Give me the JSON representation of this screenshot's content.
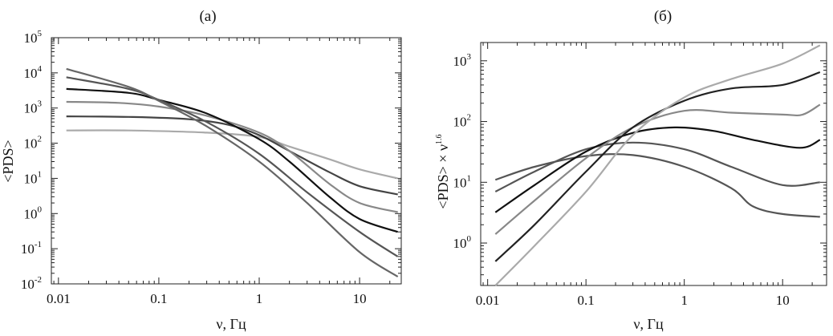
{
  "chart_data": [
    {
      "type": "line",
      "title": "(a)",
      "xlabel": "ν, Гц",
      "ylabel": "<PDS>",
      "xscale": "log",
      "yscale": "log",
      "xlim": [
        0.0085,
        26
      ],
      "ylim": [
        0.01,
        100000
      ],
      "xticks": [
        {
          "value": 0.01,
          "label": "0.01"
        },
        {
          "value": 0.1,
          "label": "0.1"
        },
        {
          "value": 1,
          "label": "1"
        },
        {
          "value": 10,
          "label": "10"
        }
      ],
      "yticks": [
        {
          "value": 0.01,
          "base": "10",
          "exp": "-2"
        },
        {
          "value": 0.1,
          "base": "10",
          "exp": "-1"
        },
        {
          "value": 1,
          "base": "10",
          "exp": "0"
        },
        {
          "value": 10,
          "base": "10",
          "exp": "1"
        },
        {
          "value": 100,
          "base": "10",
          "exp": "2"
        },
        {
          "value": 1000,
          "base": "10",
          "exp": "3"
        },
        {
          "value": 10000,
          "base": "10",
          "exp": "4"
        },
        {
          "value": 100000,
          "base": "10",
          "exp": "5"
        }
      ],
      "grid": false,
      "legend": "none",
      "series": [
        {
          "color": "#aaaaaa",
          "x": [
            0.012,
            0.05,
            0.3,
            1,
            2,
            5,
            10,
            24
          ],
          "y": [
            230,
            230,
            200,
            150,
            80,
            35,
            18,
            10
          ]
        },
        {
          "color": "#444444",
          "x": [
            0.012,
            0.05,
            0.2,
            0.5,
            1,
            2,
            5,
            10,
            24
          ],
          "y": [
            580,
            560,
            480,
            330,
            170,
            60,
            15,
            6,
            3.5
          ]
        },
        {
          "color": "#888888",
          "x": [
            0.012,
            0.04,
            0.1,
            0.3,
            1,
            2,
            5,
            10,
            24
          ],
          "y": [
            1500,
            1400,
            1100,
            600,
            200,
            60,
            7,
            2,
            1.1
          ]
        },
        {
          "color": "#111111",
          "x": [
            0.012,
            0.05,
            0.1,
            0.3,
            1,
            2,
            5,
            10,
            24
          ],
          "y": [
            3500,
            2700,
            1700,
            700,
            130,
            30,
            3,
            0.7,
            0.3
          ]
        },
        {
          "color": "#555555",
          "x": [
            0.012,
            0.05,
            0.1,
            0.3,
            1,
            3,
            10,
            24
          ],
          "y": [
            7500,
            3500,
            1700,
            400,
            50,
            4,
            0.3,
            0.06
          ]
        },
        {
          "color": "#666666",
          "x": [
            0.012,
            0.05,
            0.1,
            0.3,
            1,
            3,
            10,
            24
          ],
          "y": [
            13000,
            4000,
            1600,
            300,
            30,
            2,
            0.08,
            0.016
          ]
        }
      ]
    },
    {
      "type": "line",
      "title": "(б)",
      "xlabel": "ν, Гц",
      "ylabel": "<PDS> × ν",
      "ylabel_exp": "1.6",
      "xscale": "log",
      "yscale": "log",
      "xlim": [
        0.0085,
        28
      ],
      "ylim": [
        0.2,
        2000
      ],
      "xticks": [
        {
          "value": 0.01,
          "label": "0.01"
        },
        {
          "value": 0.1,
          "label": "0.1"
        },
        {
          "value": 1,
          "label": "1"
        },
        {
          "value": 10,
          "label": "10"
        }
      ],
      "yticks": [
        {
          "value": 1,
          "base": "10",
          "exp": "0"
        },
        {
          "value": 10,
          "base": "10",
          "exp": "1"
        },
        {
          "value": 100,
          "base": "10",
          "exp": "2"
        },
        {
          "value": 1000,
          "base": "10",
          "exp": "3"
        }
      ],
      "grid": false,
      "legend": "none",
      "series": [
        {
          "color": "#555555",
          "x": [
            0.012,
            0.03,
            0.1,
            0.3,
            1,
            3,
            5,
            10,
            24
          ],
          "y": [
            11,
            18,
            27,
            28,
            18,
            8,
            4,
            3,
            2.7
          ]
        },
        {
          "color": "#555555",
          "x": [
            0.012,
            0.03,
            0.1,
            0.3,
            1,
            3,
            10,
            24
          ],
          "y": [
            7,
            15,
            35,
            45,
            35,
            18,
            9,
            10
          ]
        },
        {
          "color": "#111111",
          "x": [
            0.012,
            0.03,
            0.1,
            0.3,
            0.8,
            2,
            5,
            15,
            24
          ],
          "y": [
            3.2,
            9,
            32,
            65,
            80,
            70,
            50,
            37,
            50
          ]
        },
        {
          "color": "#888888",
          "x": [
            0.012,
            0.03,
            0.1,
            0.3,
            1,
            3,
            10,
            16,
            24
          ],
          "y": [
            1.4,
            5,
            25,
            80,
            150,
            140,
            130,
            130,
            190
          ]
        },
        {
          "color": "#222222",
          "x": [
            0.012,
            0.03,
            0.1,
            0.3,
            1,
            3,
            10,
            24
          ],
          "y": [
            0.5,
            2,
            15,
            80,
            220,
            350,
            400,
            650
          ]
        },
        {
          "color": "#aaaaaa",
          "x": [
            0.012,
            0.03,
            0.1,
            0.3,
            1,
            3,
            10,
            24
          ],
          "y": [
            0.2,
            0.9,
            7,
            60,
            250,
            500,
            900,
            1800
          ]
        }
      ]
    }
  ]
}
